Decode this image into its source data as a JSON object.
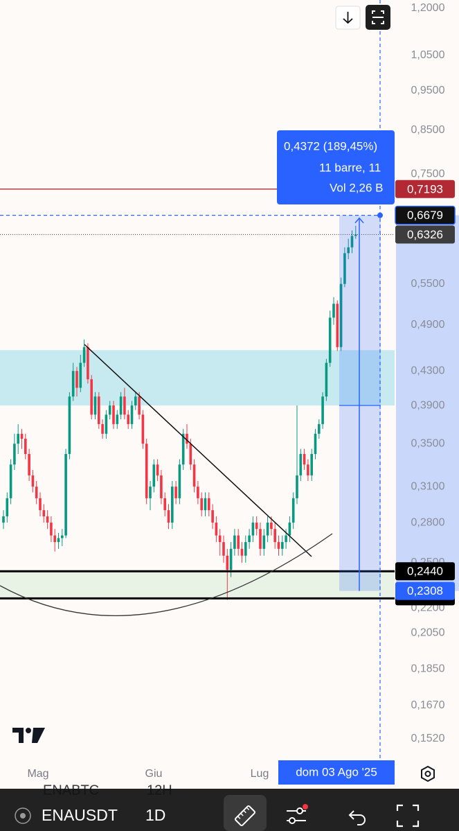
{
  "chart": {
    "type": "candlestick",
    "scale": "log",
    "ylim": [
      0.1435,
      1.228
    ],
    "yticks": [
      {
        "value": 1.2,
        "label": "1,2000"
      },
      {
        "value": 1.05,
        "label": "1,0500"
      },
      {
        "value": 0.95,
        "label": "0,9500"
      },
      {
        "value": 0.85,
        "label": "0,8500"
      },
      {
        "value": 0.75,
        "label": "0,7500"
      },
      {
        "value": 0.55,
        "label": "0,5500"
      },
      {
        "value": 0.49,
        "label": "0,4900"
      },
      {
        "value": 0.43,
        "label": "0,4300"
      },
      {
        "value": 0.39,
        "label": "0,3900"
      },
      {
        "value": 0.35,
        "label": "0,3500"
      },
      {
        "value": 0.31,
        "label": "0,3100"
      },
      {
        "value": 0.28,
        "label": "0,2800"
      },
      {
        "value": 0.25,
        "label": "0,2500"
      },
      {
        "value": 0.22,
        "label": "0,2200"
      },
      {
        "value": 0.205,
        "label": "0,2050"
      },
      {
        "value": 0.185,
        "label": "0,1850"
      },
      {
        "value": 0.167,
        "label": "0,1670"
      },
      {
        "value": 0.152,
        "label": "0,1520"
      }
    ],
    "xticks": [
      "Mag",
      "Giu",
      "Lug"
    ],
    "up_color": "#089981",
    "down_color": "#f23645",
    "candles": [
      [
        0.28,
        0.29,
        0.275,
        0.285
      ],
      [
        0.285,
        0.305,
        0.28,
        0.3
      ],
      [
        0.3,
        0.335,
        0.295,
        0.33
      ],
      [
        0.33,
        0.36,
        0.325,
        0.35
      ],
      [
        0.35,
        0.37,
        0.34,
        0.36
      ],
      [
        0.36,
        0.365,
        0.345,
        0.355
      ],
      [
        0.355,
        0.36,
        0.335,
        0.34
      ],
      [
        0.34,
        0.345,
        0.315,
        0.32
      ],
      [
        0.32,
        0.325,
        0.305,
        0.31
      ],
      [
        0.31,
        0.315,
        0.295,
        0.3
      ],
      [
        0.3,
        0.305,
        0.285,
        0.29
      ],
      [
        0.29,
        0.295,
        0.28,
        0.285
      ],
      [
        0.285,
        0.29,
        0.275,
        0.28
      ],
      [
        0.28,
        0.285,
        0.265,
        0.27
      ],
      [
        0.27,
        0.275,
        0.258,
        0.265
      ],
      [
        0.265,
        0.272,
        0.26,
        0.268
      ],
      [
        0.268,
        0.275,
        0.262,
        0.27
      ],
      [
        0.27,
        0.345,
        0.268,
        0.34
      ],
      [
        0.34,
        0.405,
        0.335,
        0.4
      ],
      [
        0.4,
        0.44,
        0.395,
        0.43
      ],
      [
        0.43,
        0.435,
        0.4,
        0.41
      ],
      [
        0.41,
        0.45,
        0.405,
        0.44
      ],
      [
        0.44,
        0.47,
        0.435,
        0.46
      ],
      [
        0.46,
        0.465,
        0.415,
        0.42
      ],
      [
        0.42,
        0.425,
        0.375,
        0.38
      ],
      [
        0.38,
        0.405,
        0.375,
        0.4
      ],
      [
        0.4,
        0.405,
        0.365,
        0.37
      ],
      [
        0.37,
        0.375,
        0.355,
        0.36
      ],
      [
        0.36,
        0.385,
        0.355,
        0.38
      ],
      [
        0.38,
        0.395,
        0.375,
        0.39
      ],
      [
        0.39,
        0.395,
        0.365,
        0.37
      ],
      [
        0.37,
        0.385,
        0.365,
        0.38
      ],
      [
        0.38,
        0.405,
        0.375,
        0.4
      ],
      [
        0.4,
        0.41,
        0.375,
        0.38
      ],
      [
        0.38,
        0.385,
        0.365,
        0.37
      ],
      [
        0.37,
        0.395,
        0.365,
        0.39
      ],
      [
        0.39,
        0.405,
        0.385,
        0.4
      ],
      [
        0.4,
        0.405,
        0.375,
        0.38
      ],
      [
        0.38,
        0.385,
        0.345,
        0.35
      ],
      [
        0.35,
        0.355,
        0.295,
        0.3
      ],
      [
        0.3,
        0.315,
        0.29,
        0.31
      ],
      [
        0.31,
        0.335,
        0.305,
        0.33
      ],
      [
        0.33,
        0.335,
        0.315,
        0.32
      ],
      [
        0.32,
        0.325,
        0.295,
        0.3
      ],
      [
        0.3,
        0.305,
        0.285,
        0.29
      ],
      [
        0.29,
        0.295,
        0.275,
        0.28
      ],
      [
        0.28,
        0.315,
        0.275,
        0.31
      ],
      [
        0.31,
        0.315,
        0.295,
        0.3
      ],
      [
        0.3,
        0.335,
        0.295,
        0.33
      ],
      [
        0.33,
        0.365,
        0.325,
        0.36
      ],
      [
        0.36,
        0.37,
        0.345,
        0.35
      ],
      [
        0.35,
        0.355,
        0.325,
        0.33
      ],
      [
        0.33,
        0.335,
        0.305,
        0.31
      ],
      [
        0.31,
        0.315,
        0.295,
        0.3
      ],
      [
        0.3,
        0.305,
        0.285,
        0.29
      ],
      [
        0.29,
        0.305,
        0.285,
        0.3
      ],
      [
        0.3,
        0.305,
        0.285,
        0.29
      ],
      [
        0.29,
        0.295,
        0.275,
        0.28
      ],
      [
        0.28,
        0.285,
        0.265,
        0.27
      ],
      [
        0.27,
        0.275,
        0.255,
        0.265
      ],
      [
        0.265,
        0.27,
        0.25,
        0.255
      ],
      [
        0.255,
        0.26,
        0.225,
        0.245
      ],
      [
        0.245,
        0.265,
        0.24,
        0.26
      ],
      [
        0.26,
        0.275,
        0.255,
        0.27
      ],
      [
        0.27,
        0.275,
        0.255,
        0.26
      ],
      [
        0.26,
        0.265,
        0.25,
        0.255
      ],
      [
        0.255,
        0.27,
        0.25,
        0.265
      ],
      [
        0.265,
        0.275,
        0.26,
        0.27
      ],
      [
        0.27,
        0.285,
        0.265,
        0.28
      ],
      [
        0.28,
        0.285,
        0.27,
        0.275
      ],
      [
        0.275,
        0.28,
        0.255,
        0.26
      ],
      [
        0.26,
        0.275,
        0.255,
        0.27
      ],
      [
        0.27,
        0.285,
        0.265,
        0.28
      ],
      [
        0.28,
        0.285,
        0.27,
        0.275
      ],
      [
        0.275,
        0.28,
        0.26,
        0.265
      ],
      [
        0.265,
        0.27,
        0.255,
        0.26
      ],
      [
        0.26,
        0.27,
        0.255,
        0.265
      ],
      [
        0.265,
        0.275,
        0.26,
        0.27
      ],
      [
        0.27,
        0.285,
        0.265,
        0.28
      ],
      [
        0.28,
        0.305,
        0.275,
        0.3
      ],
      [
        0.3,
        0.39,
        0.295,
        0.32
      ],
      [
        0.32,
        0.345,
        0.315,
        0.34
      ],
      [
        0.34,
        0.345,
        0.325,
        0.33
      ],
      [
        0.33,
        0.335,
        0.315,
        0.32
      ],
      [
        0.32,
        0.345,
        0.315,
        0.34
      ],
      [
        0.34,
        0.365,
        0.335,
        0.36
      ],
      [
        0.36,
        0.375,
        0.355,
        0.37
      ],
      [
        0.37,
        0.405,
        0.365,
        0.4
      ],
      [
        0.4,
        0.445,
        0.395,
        0.44
      ],
      [
        0.44,
        0.51,
        0.435,
        0.5
      ],
      [
        0.5,
        0.53,
        0.49,
        0.52
      ],
      [
        0.52,
        0.525,
        0.455,
        0.46
      ],
      [
        0.46,
        0.56,
        0.455,
        0.55
      ],
      [
        0.55,
        0.61,
        0.545,
        0.6
      ],
      [
        0.6,
        0.625,
        0.59,
        0.61
      ],
      [
        0.61,
        0.64,
        0.6,
        0.63
      ],
      [
        0.63,
        0.6485,
        0.625,
        0.6326
      ]
    ],
    "levels": [
      {
        "value": 0.7193,
        "label": "0,7193",
        "color": "#b22833",
        "style": "solid"
      },
      {
        "value": 0.6679,
        "label": "0,6679",
        "color": "#2962ff",
        "style": "dashed"
      },
      {
        "value": 0.6326,
        "label": "0,6326",
        "color": "#3d3d3d",
        "style": "dotted"
      },
      {
        "value": 0.244,
        "label": "0,2440",
        "color": "#000000",
        "style": "thick"
      },
      {
        "value": 0.2308,
        "label": "0,2308",
        "color": "#2962ff",
        "style": "tag"
      }
    ],
    "support_line": 0.226,
    "zones": [
      {
        "top": 0.456,
        "bottom": 0.39,
        "color": "#b8e6ee"
      },
      {
        "top": 0.244,
        "bottom": 0.226,
        "color": "#e2f0e0"
      }
    ],
    "measure": {
      "lines": [
        "0,4372 (189,45%)",
        "11 barre, 11",
        "Vol 2,26 B"
      ]
    },
    "date_tag": "dom 03 Ago '25"
  },
  "toolbar": {
    "symbol": "ENAUSDT",
    "interval": "1D",
    "ghost": [
      "ENABTC",
      "12H"
    ]
  }
}
